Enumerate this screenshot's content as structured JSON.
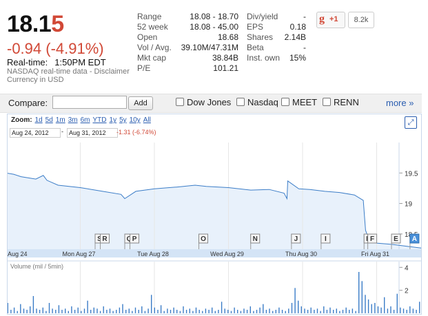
{
  "quote": {
    "price_main": "18.1",
    "price_last_digit": "5",
    "change": "-0.94 (-4.91%)",
    "realtime_label": "Real-time:",
    "realtime_time": "1:50PM EDT",
    "source_line": "NASDAQ real-time data - Disclaimer",
    "currency_line": "Currency in USD"
  },
  "stats_left": [
    {
      "label": "Range",
      "value": "18.08 - 18.70"
    },
    {
      "label": "52 week",
      "value": "18.08 - 45.00"
    },
    {
      "label": "Open",
      "value": "18.68"
    },
    {
      "label": "Vol / Avg.",
      "value": "39.10M/47.31M"
    },
    {
      "label": "Mkt cap",
      "value": "38.84B"
    },
    {
      "label": "P/E",
      "value": "101.21"
    }
  ],
  "stats_right": [
    {
      "label": "Div/yield",
      "value": "-"
    },
    {
      "label": "EPS",
      "value": "0.18"
    },
    {
      "label": "Shares",
      "value": "2.14B"
    },
    {
      "label": "Beta",
      "value": "-"
    },
    {
      "label": "Inst. own",
      "value": "15%"
    }
  ],
  "social": {
    "gplus_g": "g",
    "gplus_label": "+1",
    "count": "8.2k"
  },
  "compare": {
    "label": "Compare:",
    "input_value": "",
    "add_label": "Add",
    "checkboxes": [
      "Dow Jones",
      "Nasdaq",
      "MEET",
      "RENN"
    ],
    "more_label": "more »"
  },
  "chart_controls": {
    "zoom_label": "Zoom:",
    "zoom_options": [
      "1d",
      "5d",
      "1m",
      "3m",
      "6m",
      "YTD",
      "1y",
      "5y",
      "10y",
      "All"
    ],
    "date_from": "Aug 24, 2012",
    "date_sep": "-",
    "date_to": "Aug 31, 2012",
    "range_change": "-1.31 (-6.74%)",
    "expand_icon": "expand-icon"
  },
  "chart_data": {
    "type": "line",
    "x_ticks": [
      "Aug 24",
      "Mon Aug 27",
      "Tue Aug 28",
      "Wed Aug 29",
      "Thu Aug 30",
      "Fri Aug 31"
    ],
    "y_ticks": [
      19.5,
      19.0,
      18.5
    ],
    "ylim": [
      18.25,
      20.0
    ],
    "days": [
      0,
      1,
      2,
      3,
      4,
      5,
      6
    ],
    "series": [
      {
        "points": [
          [
            0.0,
            19.5
          ],
          [
            0.1,
            19.48
          ],
          [
            0.2,
            19.44
          ],
          [
            0.3,
            19.42
          ],
          [
            0.4,
            19.4
          ],
          [
            0.5,
            19.46
          ],
          [
            0.55,
            19.38
          ],
          [
            0.7,
            19.3
          ],
          [
            1.0,
            19.26
          ],
          [
            1.3,
            19.2
          ],
          [
            1.55,
            19.15
          ],
          [
            1.6,
            19.08
          ],
          [
            1.75,
            19.2
          ],
          [
            2.0,
            19.24
          ],
          [
            2.3,
            19.27
          ],
          [
            2.55,
            19.3
          ],
          [
            2.7,
            19.28
          ],
          [
            3.0,
            19.26
          ],
          [
            3.3,
            19.22
          ],
          [
            3.55,
            19.23
          ],
          [
            3.75,
            19.17
          ],
          [
            3.79,
            19.08
          ],
          [
            3.8,
            19.37
          ],
          [
            3.95,
            19.24
          ],
          [
            4.1,
            19.23
          ],
          [
            4.3,
            19.2
          ],
          [
            4.5,
            19.18
          ],
          [
            4.7,
            19.14
          ],
          [
            4.82,
            19.05
          ],
          [
            4.85,
            18.56
          ],
          [
            4.9,
            18.4
          ],
          [
            5.0,
            18.35
          ],
          [
            5.2,
            18.33
          ],
          [
            5.4,
            18.3
          ],
          [
            5.6,
            18.27
          ]
        ]
      }
    ],
    "volume_label": "Volume (mil / 5min)",
    "volume_ticks": [
      4,
      2
    ],
    "volume_ylim": [
      0,
      4.5
    ],
    "volume": [
      0.9,
      0.3,
      0.5,
      0.2,
      0.8,
      0.4,
      0.3,
      0.6,
      1.5,
      0.4,
      0.3,
      0.5,
      0.2,
      0.9,
      0.4,
      0.3,
      0.7,
      0.3,
      0.4,
      0.2,
      0.6,
      0.3,
      0.5,
      0.2,
      0.4,
      1.1,
      0.3,
      0.5,
      0.4,
      0.2,
      0.6,
      0.3,
      0.4,
      0.2,
      0.3,
      0.5,
      0.8,
      0.3,
      0.4,
      0.2,
      0.5,
      0.3,
      0.6,
      0.2,
      0.4,
      1.6,
      0.5,
      0.3,
      0.7,
      0.2,
      0.4,
      0.3,
      0.5,
      0.3,
      0.2,
      0.6,
      0.3,
      0.4,
      0.2,
      0.5,
      0.3,
      0.2,
      0.4,
      0.3,
      0.5,
      0.2,
      0.3,
      1.0,
      0.4,
      0.3,
      0.2,
      0.5,
      0.3,
      0.2,
      0.4,
      0.3,
      0.6,
      0.2,
      0.3,
      0.5,
      0.8,
      0.3,
      0.4,
      0.2,
      0.3,
      0.5,
      0.3,
      0.2,
      0.4,
      0.9,
      2.2,
      1.1,
      0.6,
      0.4,
      0.3,
      0.5,
      0.3,
      0.4,
      0.2,
      0.6,
      0.3,
      0.5,
      0.3,
      0.4,
      0.2,
      0.3,
      0.5,
      0.3,
      0.4,
      0.2,
      3.6,
      2.8,
      1.6,
      1.2,
      0.8,
      0.9,
      0.6,
      0.5,
      1.4,
      0.4,
      0.6,
      0.3,
      1.7,
      0.5,
      0.4,
      0.3,
      0.6,
      0.4,
      0.3,
      1.0
    ],
    "event_flags": [
      {
        "label": "S",
        "day": 1.2
      },
      {
        "label": "R",
        "day": 1.27
      },
      {
        "label": "Q",
        "day": 1.6
      },
      {
        "label": "P",
        "day": 1.67
      },
      {
        "label": "O",
        "day": 2.6
      },
      {
        "label": "N",
        "day": 3.3
      },
      {
        "label": "J",
        "day": 3.85
      },
      {
        "label": "I",
        "day": 4.25
      },
      {
        "label": "H",
        "day": 4.83
      },
      {
        "label": "F",
        "day": 4.88
      },
      {
        "label": "E",
        "day": 5.2
      },
      {
        "label": "A",
        "day": 5.45
      }
    ],
    "colors": {
      "line": "#3a7cc7",
      "area": "#e8f1fb",
      "axis_band": "#d4e4f6",
      "active_flag": "#4a90d9"
    }
  }
}
